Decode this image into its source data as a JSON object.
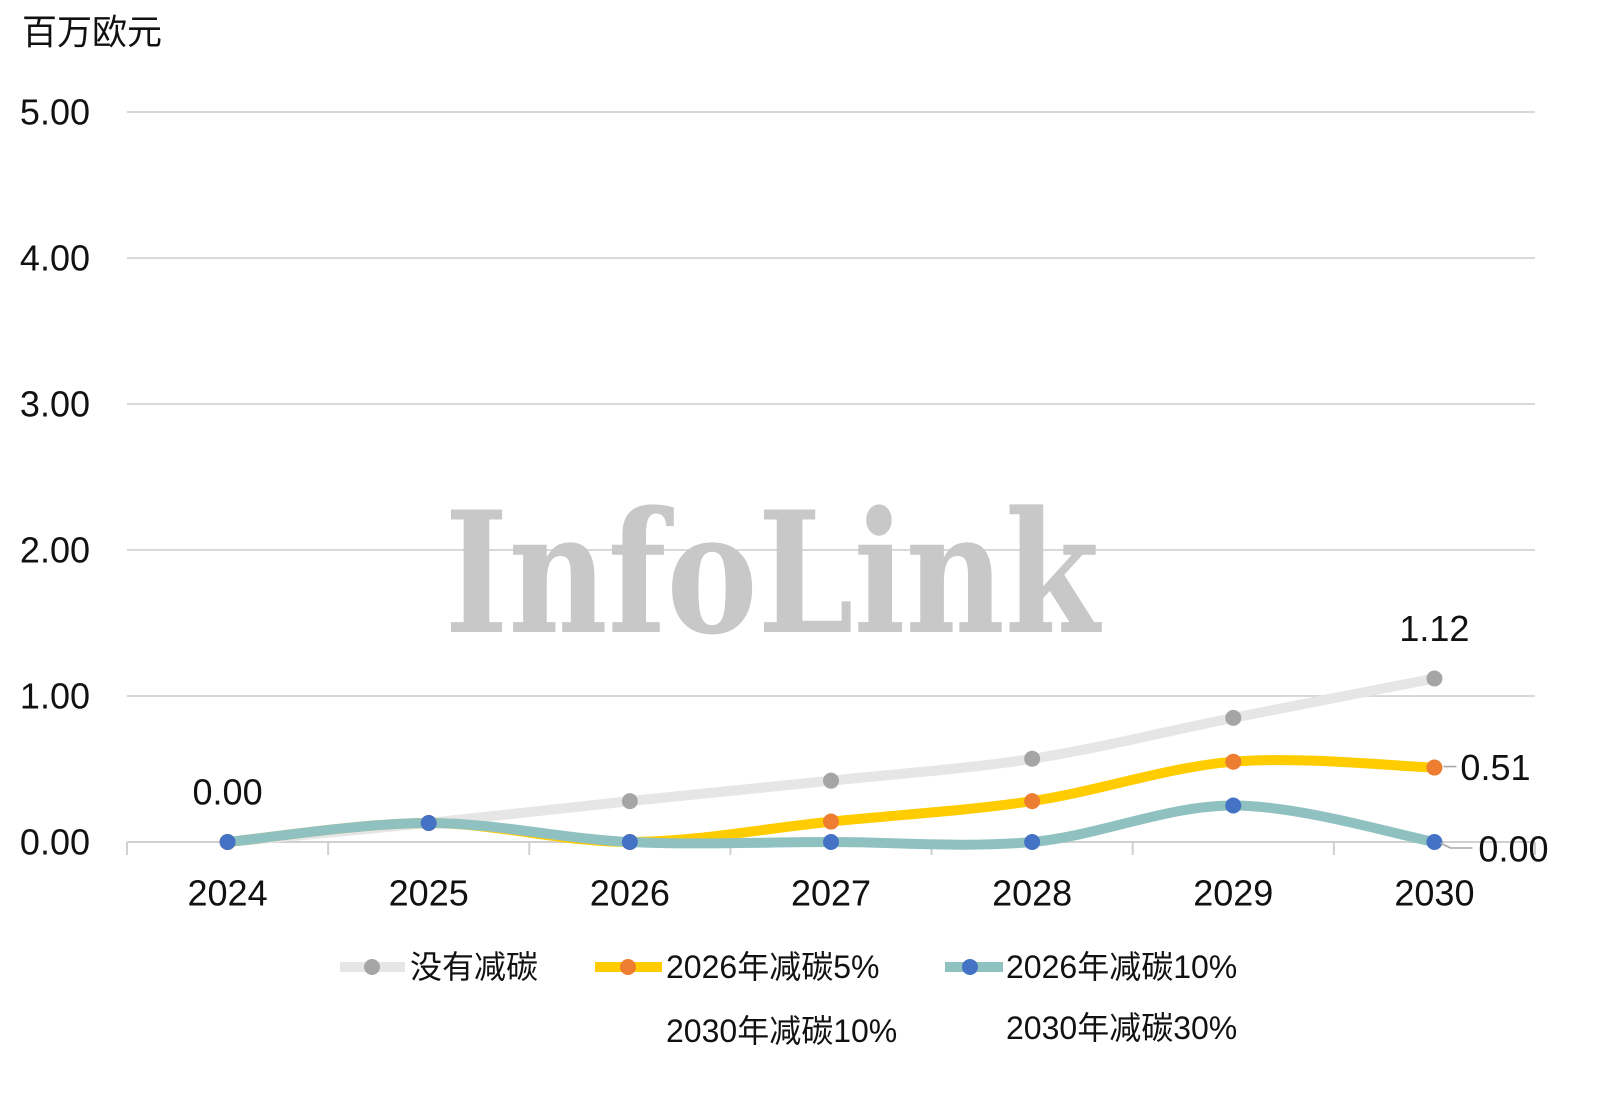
{
  "chart_data": {
    "type": "line",
    "ylabel": "百万欧元",
    "categories": [
      "2024",
      "2025",
      "2026",
      "2027",
      "2028",
      "2029",
      "2030"
    ],
    "ylim": [
      0,
      5
    ],
    "y_ticks": [
      "0.00",
      "1.00",
      "2.00",
      "3.00",
      "4.00",
      "5.00"
    ],
    "grid": true,
    "smooth": true,
    "legend_position": "bottom",
    "series": [
      {
        "name": "没有减碳",
        "values": [
          0.0,
          0.13,
          0.28,
          0.42,
          0.57,
          0.85,
          1.12
        ],
        "line_color": "#e7e6e6",
        "marker_color": "#a5a5a5"
      },
      {
        "name": "2026年减碳5%",
        "values": [
          0.0,
          0.13,
          0.0,
          0.14,
          0.28,
          0.55,
          0.51
        ],
        "line_color": "#ffcc00",
        "marker_color": "#ed7d31"
      },
      {
        "name": "2026年减碳10%",
        "values": [
          0.0,
          0.13,
          0.0,
          0.0,
          0.0,
          0.25,
          0.0
        ],
        "line_color": "#8fc1c0",
        "marker_color": "#4472c4"
      },
      {
        "name": "2030年减碳10%"
      },
      {
        "name": "2030年减碳30%"
      }
    ],
    "data_labels": [
      {
        "series": 0,
        "index": 0,
        "text": "0.00"
      },
      {
        "series": 0,
        "index": 6,
        "text": "1.12"
      },
      {
        "series": 1,
        "index": 6,
        "text": "0.51"
      },
      {
        "series": 2,
        "index": 6,
        "text": "0.00"
      }
    ]
  },
  "watermark": "InfoLink"
}
